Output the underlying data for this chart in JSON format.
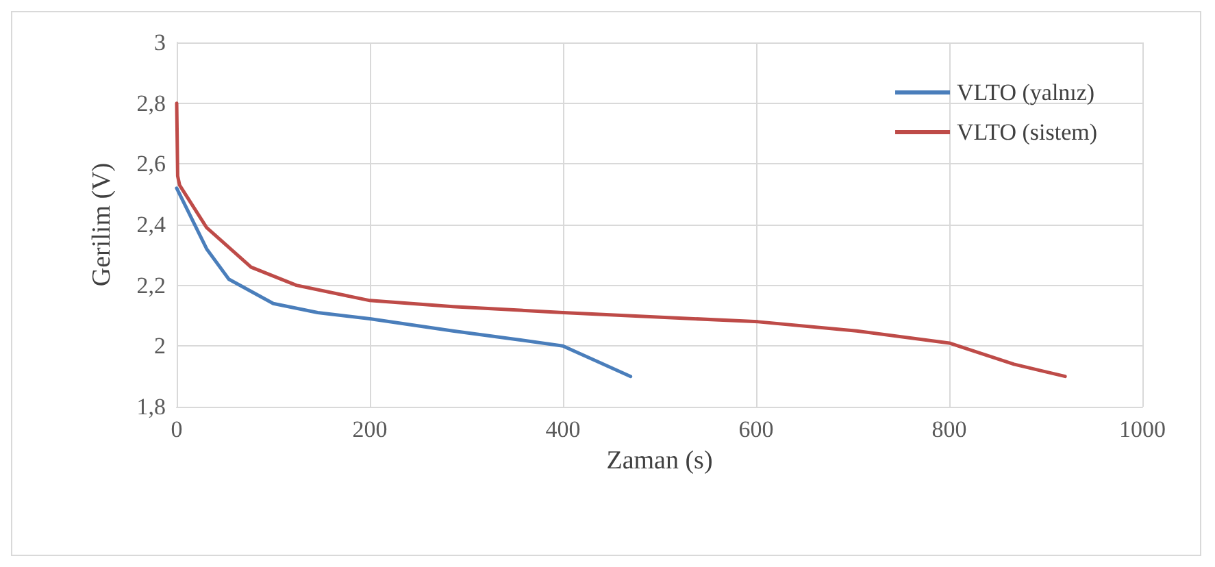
{
  "chart_data": {
    "type": "line",
    "xlabel": "Zaman (s)",
    "ylabel": "Gerilim (V)",
    "xlim": [
      0,
      1000
    ],
    "xticks": [
      0,
      200,
      400,
      600,
      800,
      1000
    ],
    "ylim": [
      1.8,
      3
    ],
    "yticks": [
      {
        "value": 1.8,
        "label": "1,8"
      },
      2,
      {
        "value": 2.2,
        "label": "2,2"
      },
      {
        "value": 2.4,
        "label": "2,4"
      },
      {
        "value": 2.6,
        "label": "2,6"
      },
      {
        "value": 2.8,
        "label": "2,8"
      },
      3
    ],
    "grid": true,
    "legend": "top right",
    "marker": "none",
    "line_style": "solid",
    "series": [
      {
        "name": "VLTO (yalnız)",
        "color": "#4a7ebb",
        "x": [
          0,
          31,
          54,
          100,
          146,
          200,
          286,
          356,
          400,
          435,
          470
        ],
        "values": [
          2.52,
          2.32,
          2.22,
          2.14,
          2.11,
          2.09,
          2.05,
          2.02,
          2.0,
          1.95,
          1.9
        ]
      },
      {
        "name": "VLTO (sistem)",
        "color": "#be4b48",
        "x": [
          0,
          1,
          3,
          31,
          77,
          124,
          200,
          286,
          400,
          602,
          704,
          800,
          867,
          920
        ],
        "values": [
          2.8,
          2.56,
          2.53,
          2.39,
          2.26,
          2.2,
          2.15,
          2.13,
          2.11,
          2.08,
          2.05,
          2.01,
          1.94,
          1.9
        ]
      }
    ]
  }
}
